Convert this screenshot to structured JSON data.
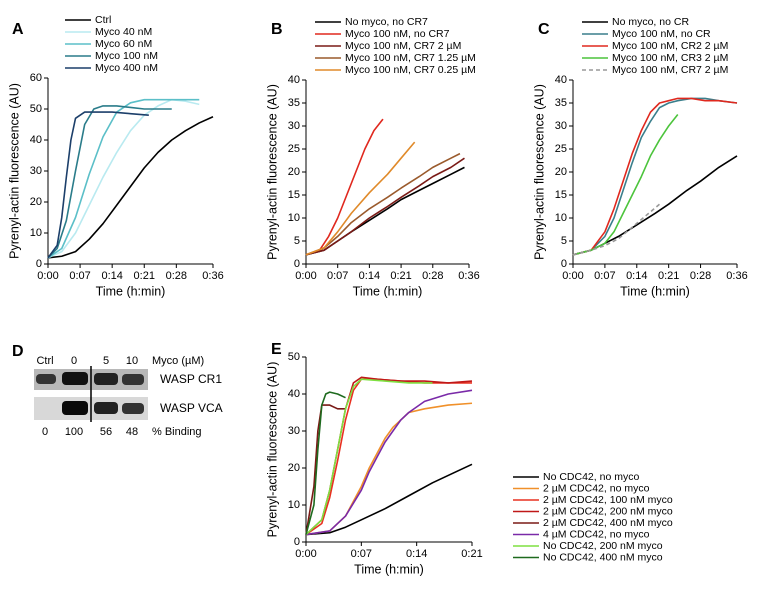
{
  "chart_data": [
    {
      "type": "line",
      "panel": "A",
      "y_label": "Pyrenyl-actin fluorescence (AU)",
      "x_label": "Time (h:min)",
      "xlim": [
        0,
        36
      ],
      "ylim": [
        0,
        60
      ],
      "xticks": [
        {
          "value": 0,
          "label": "0:00"
        },
        {
          "value": 7,
          "label": "0:07"
        },
        {
          "value": 14,
          "label": "0:14"
        },
        {
          "value": 21,
          "label": "0:21"
        },
        {
          "value": 28,
          "label": "0:28"
        },
        {
          "value": 36,
          "label": "0:36"
        }
      ],
      "yticks": [
        0,
        10,
        20,
        30,
        40,
        50,
        60
      ],
      "series": [
        {
          "name": "Ctrl",
          "color": "#000000",
          "x": [
            0,
            3,
            6,
            9,
            12,
            15,
            18,
            21,
            24,
            27,
            30,
            33,
            36
          ],
          "values": [
            2,
            2.5,
            4,
            8,
            13,
            19,
            25,
            31,
            36,
            40,
            43,
            45.5,
            47.5
          ]
        },
        {
          "name": "Myco 40 nM",
          "color": "#b9eaf0",
          "x": [
            0,
            3,
            6,
            9,
            12,
            15,
            18,
            21,
            24,
            27,
            30,
            33
          ],
          "values": [
            2,
            4,
            10,
            19,
            28,
            36,
            43,
            48,
            51,
            53,
            52.5,
            51.5
          ]
        },
        {
          "name": "Myco 60 nM",
          "color": "#5bbfc8",
          "x": [
            0,
            3,
            6,
            9,
            12,
            15,
            18,
            21,
            24,
            27,
            30,
            33
          ],
          "values": [
            2,
            5,
            15,
            29,
            41,
            49,
            52,
            53,
            53,
            53,
            53,
            53
          ]
        },
        {
          "name": "Myco 100 nM",
          "color": "#2a7c8a",
          "x": [
            0,
            2,
            4,
            6,
            8,
            10,
            12,
            15,
            18,
            21,
            24,
            27
          ],
          "values": [
            2,
            5,
            14,
            30,
            45,
            50,
            51,
            51,
            50.5,
            50,
            50,
            50
          ]
        },
        {
          "name": "Myco 400 nM",
          "color": "#1c3f6a",
          "x": [
            0,
            2,
            3,
            4,
            5,
            6,
            8,
            10,
            14,
            18,
            22
          ],
          "values": [
            2,
            6,
            15,
            28,
            40,
            47,
            49,
            49,
            49,
            48.5,
            48
          ]
        }
      ]
    },
    {
      "type": "line",
      "panel": "B",
      "y_label": "Pyrenyl-actin fluorescence (AU)",
      "x_label": "Time (h:min)",
      "xlim": [
        0,
        36
      ],
      "ylim": [
        0,
        40
      ],
      "xticks": [
        {
          "value": 0,
          "label": "0:00"
        },
        {
          "value": 7,
          "label": "0:07"
        },
        {
          "value": 14,
          "label": "0:14"
        },
        {
          "value": 21,
          "label": "0:21"
        },
        {
          "value": 28,
          "label": "0:28"
        },
        {
          "value": 36,
          "label": "0:36"
        }
      ],
      "yticks": [
        0,
        5,
        10,
        15,
        20,
        25,
        30,
        35,
        40
      ],
      "series": [
        {
          "name": "No myco, no CR7",
          "color": "#000000",
          "x": [
            0,
            4,
            7,
            10,
            14,
            18,
            21,
            25,
            28,
            32,
            35
          ],
          "values": [
            2,
            3,
            5,
            7,
            9.5,
            12,
            14,
            16,
            17.5,
            19.5,
            21
          ]
        },
        {
          "name": "Myco 100 nM, no CR7",
          "color": "#e0281e",
          "x": [
            0,
            3,
            5,
            7,
            9,
            11,
            13,
            15,
            17
          ],
          "values": [
            2,
            3,
            6,
            10,
            15,
            20,
            25,
            29,
            31.5
          ]
        },
        {
          "name": "Myco 100 nM, CR7 2 µM",
          "color": "#7a1a16",
          "x": [
            0,
            4,
            7,
            10,
            14,
            18,
            21,
            25,
            28,
            32,
            35
          ],
          "values": [
            2,
            3,
            5,
            7,
            10,
            12.5,
            14.5,
            17,
            19,
            21,
            23
          ]
        },
        {
          "name": "Myco 100 nM, CR7 1.25 µM",
          "color": "#9a5a2c",
          "x": [
            0,
            4,
            7,
            10,
            14,
            18,
            21,
            25,
            28,
            32,
            34
          ],
          "values": [
            2,
            3.5,
            6,
            9,
            12,
            14.5,
            16.5,
            19,
            21,
            23,
            24
          ]
        },
        {
          "name": "Myco 100 nM, CR7 0.25 µM",
          "color": "#e08a2a",
          "x": [
            0,
            4,
            7,
            10,
            14,
            18,
            21,
            24
          ],
          "values": [
            2,
            3.5,
            7,
            11,
            15.5,
            19.5,
            23,
            26.5
          ]
        }
      ]
    },
    {
      "type": "line",
      "panel": "C",
      "y_label": "Pyrenyl-actin fluorescence (AU)",
      "x_label": "Time (h:min)",
      "xlim": [
        0,
        36
      ],
      "ylim": [
        0,
        40
      ],
      "xticks": [
        {
          "value": 0,
          "label": "0:00"
        },
        {
          "value": 7,
          "label": "0:07"
        },
        {
          "value": 14,
          "label": "0:14"
        },
        {
          "value": 21,
          "label": "0:21"
        },
        {
          "value": 28,
          "label": "0:28"
        },
        {
          "value": 36,
          "label": "0:36"
        }
      ],
      "yticks": [
        0,
        5,
        10,
        15,
        20,
        25,
        30,
        35,
        40
      ],
      "series": [
        {
          "name": "No myco, no CR",
          "color": "#000000",
          "x": [
            0,
            4,
            7,
            10,
            14,
            18,
            21,
            25,
            28,
            32,
            36
          ],
          "values": [
            2,
            3,
            4.5,
            6,
            8.5,
            11,
            13,
            16,
            18,
            21,
            23.5
          ]
        },
        {
          "name": "Myco 100 nM, no CR",
          "color": "#3a7f8c",
          "x": [
            0,
            4,
            7,
            9,
            11,
            13,
            15,
            17,
            19,
            21,
            23,
            26,
            29,
            32,
            36
          ],
          "values": [
            2,
            3,
            6,
            10,
            16,
            22,
            27.5,
            31,
            34,
            35,
            35.5,
            36,
            36,
            35.5,
            35
          ]
        },
        {
          "name": "Myco 100 nM, CR2 2 µM",
          "color": "#e0281e",
          "x": [
            0,
            4,
            7,
            9,
            11,
            13,
            15,
            17,
            19,
            21,
            23,
            26,
            29,
            32,
            36
          ],
          "values": [
            2,
            3,
            7,
            12,
            18,
            24,
            29,
            33,
            35,
            35.5,
            36,
            36,
            35.5,
            35.5,
            35
          ]
        },
        {
          "name": "Myco 100 nM, CR3 2 µM",
          "color": "#4cc43c",
          "x": [
            0,
            4,
            7,
            9,
            11,
            13,
            15,
            17,
            19,
            21,
            23
          ],
          "values": [
            2,
            3,
            4.5,
            7,
            11,
            15,
            19,
            23.5,
            27,
            30,
            32.5
          ]
        },
        {
          "name": "Myco 100 nM, CR7 2 µM",
          "color": "#999999",
          "dashed": true,
          "x": [
            0,
            4,
            7,
            10,
            13,
            16,
            19
          ],
          "values": [
            2,
            3,
            4,
            5.5,
            8,
            10.5,
            13
          ]
        }
      ]
    },
    {
      "type": "line",
      "panel": "E",
      "y_label": "Pyrenyl-actin fluorescence (AU)",
      "x_label": "Time (h:min)",
      "xlim": [
        0,
        21
      ],
      "ylim": [
        0,
        50
      ],
      "xticks": [
        {
          "value": 0,
          "label": "0:00"
        },
        {
          "value": 7,
          "label": "0:07"
        },
        {
          "value": 14,
          "label": "0:14"
        },
        {
          "value": 21,
          "label": "0:21"
        }
      ],
      "yticks": [
        0,
        10,
        20,
        30,
        40,
        50
      ],
      "series": [
        {
          "name": "No CDC42, no myco",
          "color": "#000000",
          "x": [
            0,
            3,
            5,
            7,
            10,
            13,
            16,
            19,
            21
          ],
          "values": [
            2,
            2.5,
            4,
            6,
            9,
            12.5,
            16,
            19,
            21
          ]
        },
        {
          "name": "2 µM CDC42, no myco",
          "color": "#f0902a",
          "x": [
            0,
            3,
            5,
            7,
            8,
            9,
            10,
            11,
            12,
            13,
            15,
            18,
            21
          ],
          "values": [
            2,
            3,
            7,
            15,
            20,
            24,
            28,
            31,
            33,
            35,
            36,
            37,
            37.5
          ]
        },
        {
          "name": "2 µM CDC42, 100 nM myco",
          "color": "#e83020",
          "x": [
            0,
            2,
            3,
            4,
            5,
            6,
            7,
            9,
            12,
            15,
            18,
            21
          ],
          "values": [
            2,
            5,
            12,
            22,
            33,
            41,
            44,
            44,
            43.5,
            43,
            43,
            43
          ]
        },
        {
          "name": "2 µM CDC42, 200 nM myco",
          "color": "#c01818",
          "x": [
            0,
            2,
            3,
            4,
            5,
            6,
            7,
            9,
            12,
            15,
            18,
            21
          ],
          "values": [
            2,
            6,
            14,
            25,
            36,
            43,
            44.5,
            44,
            43.5,
            43.5,
            43,
            43.5
          ]
        },
        {
          "name": "2 µM CDC42, 400 nM myco",
          "color": "#7a1a16",
          "x": [
            0,
            1,
            1.5,
            2,
            3,
            4,
            5
          ],
          "values": [
            2,
            15,
            30,
            37,
            37,
            36,
            36
          ]
        },
        {
          "name": "4 µM CDC42, no myco",
          "color": "#7a2aa8",
          "x": [
            0,
            3,
            5,
            7,
            8,
            9,
            10,
            11,
            12,
            13,
            15,
            18,
            21
          ],
          "values": [
            2,
            3,
            7,
            14,
            19,
            23,
            27,
            30,
            33,
            35,
            38,
            40,
            41
          ]
        },
        {
          "name": "No CDC42, 200 nM myco",
          "color": "#7ee040",
          "x": [
            0,
            2,
            3,
            4,
            5,
            6,
            7,
            10,
            13,
            16
          ],
          "values": [
            2,
            6,
            14,
            25,
            36,
            42,
            44,
            43.5,
            43,
            43
          ]
        },
        {
          "name": "No CDC42, 400 nM myco",
          "color": "#1e6a1e",
          "x": [
            0,
            1,
            1.5,
            2,
            2.5,
            3,
            4,
            5
          ],
          "values": [
            2,
            10,
            25,
            37,
            40,
            40.5,
            40,
            39
          ]
        }
      ]
    }
  ],
  "blot": {
    "panel": "D",
    "lanes": [
      "Ctrl",
      "0",
      "5",
      "10"
    ],
    "lanes_label": "Myco (µM)",
    "rows": [
      "WASP CR1",
      "WASP VCA"
    ],
    "binding": [
      "0",
      "100",
      "56",
      "48"
    ],
    "binding_label": "% Binding"
  }
}
